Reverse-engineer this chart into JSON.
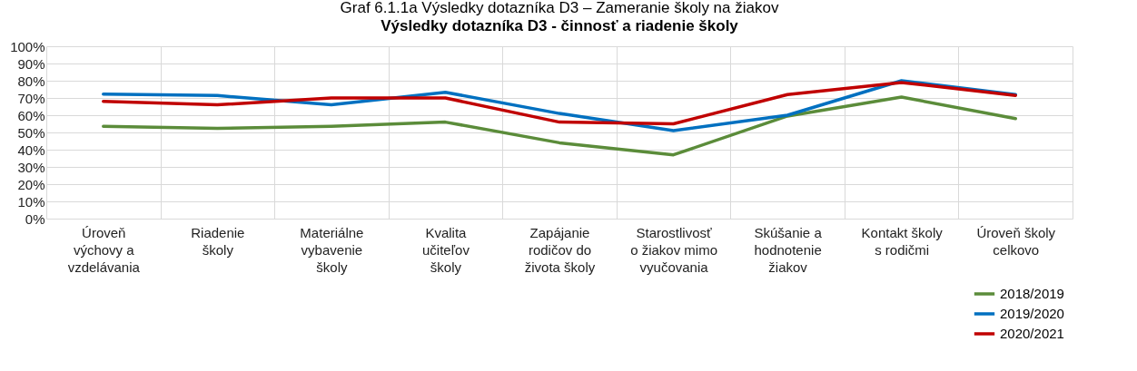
{
  "chart_data": {
    "type": "line",
    "title": "Graf 6.1.1a Výsledky dotazníka D3 – Zameranie školy na žiakov",
    "subtitle": "Výsledky dotazníka D3 - činnosť a riadenie školy",
    "categories": [
      "Úroveň výchovy a vzdelávania",
      "Riadenie školy",
      "Materiálne vybavenie školy",
      "Kvalita učiteľov školy",
      "Zapájanie rodičov do života školy",
      "Starostlivosť o žiakov mimo vyučovania",
      "Skúšanie a hodnotenie žiakov",
      "Kontakt školy s rodičmi",
      "Úroveň školy celkovo"
    ],
    "series": [
      {
        "name": "2018/2019",
        "color": "#5b8c3a",
        "values": [
          53.6,
          52.4,
          53.6,
          56,
          44,
          37,
          59.5,
          70.5,
          58
        ]
      },
      {
        "name": "2019/2020",
        "color": "#0070c0",
        "values": [
          72.2,
          71.4,
          66,
          73.3,
          61,
          51,
          60,
          80,
          72
        ]
      },
      {
        "name": "2020/2021",
        "color": "#c00000",
        "values": [
          68,
          66,
          70,
          70,
          56,
          55,
          72,
          79,
          71.5
        ]
      }
    ],
    "ylim": [
      0,
      100
    ],
    "yticks": [
      {
        "value": 0,
        "label": "0%"
      },
      {
        "value": 10,
        "label": "10%"
      },
      {
        "value": 20,
        "label": "20%"
      },
      {
        "value": 30,
        "label": "30%"
      },
      {
        "value": 40,
        "label": "40%"
      },
      {
        "value": 50,
        "label": "50%"
      },
      {
        "value": 60,
        "label": "60%"
      },
      {
        "value": 70,
        "label": "70%"
      },
      {
        "value": 80,
        "label": "80%"
      },
      {
        "value": 90,
        "label": "90%"
      },
      {
        "value": 100,
        "label": "100%"
      }
    ],
    "grid": true,
    "legend": "bottom right",
    "line_style": "solid",
    "marker": "none"
  }
}
